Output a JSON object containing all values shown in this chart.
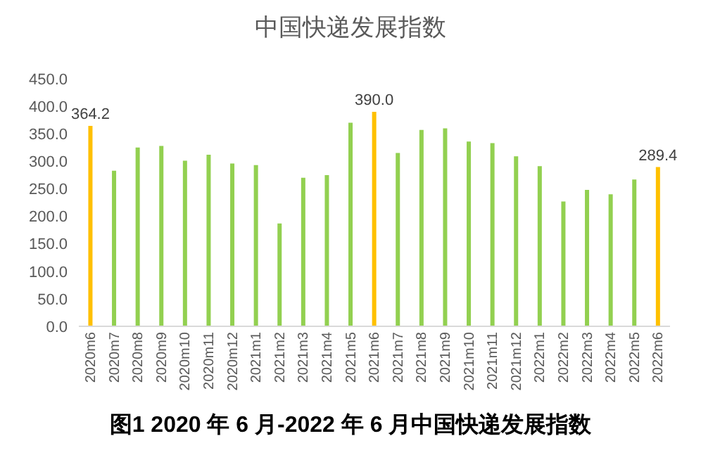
{
  "chart_data": {
    "type": "bar",
    "title": "中国快递发展指数",
    "categories": [
      "2020m6",
      "2020m7",
      "2020m8",
      "2020m9",
      "2020m10",
      "2020m11",
      "2020m12",
      "2021m1",
      "2021m2",
      "2021m3",
      "2021m4",
      "2021m5",
      "2021m6",
      "2021m7",
      "2021m8",
      "2021m9",
      "2021m10",
      "2021m11",
      "2021m12",
      "2022m1",
      "2022m2",
      "2022m3",
      "2022m4",
      "2022m5",
      "2022m6"
    ],
    "values": [
      364.2,
      283,
      325,
      328,
      301,
      312,
      296,
      293,
      187,
      270,
      275,
      370,
      390.0,
      315,
      357,
      360,
      336,
      333,
      309,
      291,
      227,
      248,
      240,
      267,
      289.4
    ],
    "colors": [
      "#ffc000",
      "#92d050",
      "#92d050",
      "#92d050",
      "#92d050",
      "#92d050",
      "#92d050",
      "#92d050",
      "#92d050",
      "#92d050",
      "#92d050",
      "#92d050",
      "#ffc000",
      "#92d050",
      "#92d050",
      "#92d050",
      "#92d050",
      "#92d050",
      "#92d050",
      "#92d050",
      "#92d050",
      "#92d050",
      "#92d050",
      "#92d050",
      "#ffc000"
    ],
    "value_labels": [
      "364.2",
      null,
      null,
      null,
      null,
      null,
      null,
      null,
      null,
      null,
      null,
      null,
      "390.0",
      null,
      null,
      null,
      null,
      null,
      null,
      null,
      null,
      null,
      null,
      null,
      "289.4"
    ],
    "ylim": [
      0,
      450
    ],
    "yticks": [
      {
        "value": 0,
        "label": "0.0"
      },
      {
        "value": 50,
        "label": "50.0"
      },
      {
        "value": 100,
        "label": "100.0"
      },
      {
        "value": 150,
        "label": "150.0"
      },
      {
        "value": 200,
        "label": "200.0"
      },
      {
        "value": 250,
        "label": "250.0"
      },
      {
        "value": 300,
        "label": "300.0"
      },
      {
        "value": 350,
        "label": "350.0"
      },
      {
        "value": 400,
        "label": "400.0"
      },
      {
        "value": 450,
        "label": "450.0"
      }
    ],
    "grid": false,
    "annotations": [
      "图1 2020 年 6 月-2022 年 6 月中国快递发展指数"
    ]
  }
}
